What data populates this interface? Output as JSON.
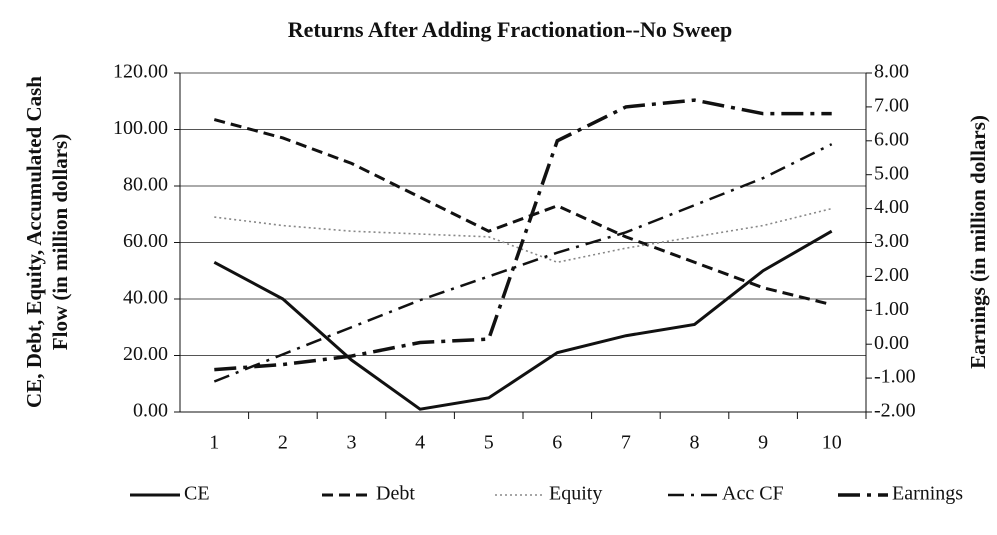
{
  "chart_data": {
    "type": "line",
    "title": "Returns After Adding Fractionation--No Sweep",
    "y_label_lines": [
      "CE, Debt, Equity, Accumulated Cash",
      "Flow (in million dollars)"
    ],
    "y2_label": "Earnings (in million dollars)",
    "categories": [
      "1",
      "2",
      "3",
      "4",
      "5",
      "6",
      "7",
      "8",
      "9",
      "10"
    ],
    "ylim": [
      0,
      120
    ],
    "yticks": [
      {
        "value": 0,
        "label": "0.00"
      },
      {
        "value": 20,
        "label": "20.00"
      },
      {
        "value": 40,
        "label": "40.00"
      },
      {
        "value": 60,
        "label": "60.00"
      },
      {
        "value": 80,
        "label": "80.00"
      },
      {
        "value": 100,
        "label": "100.00"
      },
      {
        "value": 120,
        "label": "120.00"
      }
    ],
    "y2lim": [
      -2,
      8
    ],
    "y2ticks": [
      {
        "value": -2,
        "label": "-2.00"
      },
      {
        "value": -1,
        "label": "-1.00"
      },
      {
        "value": 0,
        "label": "0.00"
      },
      {
        "value": 1,
        "label": "1.00"
      },
      {
        "value": 2,
        "label": "2.00"
      },
      {
        "value": 3,
        "label": "3.00"
      },
      {
        "value": 4,
        "label": "4.00"
      },
      {
        "value": 5,
        "label": "5.00"
      },
      {
        "value": 6,
        "label": "6.00"
      },
      {
        "value": 7,
        "label": "7.00"
      },
      {
        "value": 8,
        "label": "8.00"
      }
    ],
    "grid": true,
    "legend": "bottom",
    "series": [
      {
        "name": "CE",
        "color": "#111111",
        "dash": "solid",
        "values": [
          53,
          40,
          18.4,
          1,
          5,
          21,
          27,
          31,
          50,
          64
        ]
      },
      {
        "name": "Debt",
        "color": "#111111",
        "dash": "dashed",
        "values": [
          103.5,
          97,
          88,
          76,
          64,
          73,
          62,
          53,
          44,
          38
        ]
      },
      {
        "name": "Equity",
        "color": "#888888",
        "dash": "dotted",
        "values": [
          69,
          66,
          64,
          63,
          62,
          53,
          58,
          62,
          66,
          72
        ]
      },
      {
        "name": "Acc CF",
        "color": "#111111",
        "dash": "dashdot",
        "axis": "y2",
        "values": [
          -1.1,
          -0.3,
          0.5,
          1.3,
          2.0,
          2.7,
          3.3,
          4.1,
          4.9,
          5.9
        ]
      },
      {
        "name": "Earnings",
        "color": "#111111",
        "dash": "longdashdot",
        "axis": "y2",
        "values": [
          -0.75,
          -0.6,
          -0.35,
          0.05,
          0.15,
          6.0,
          7.0,
          7.2,
          6.8,
          6.8
        ]
      }
    ]
  }
}
